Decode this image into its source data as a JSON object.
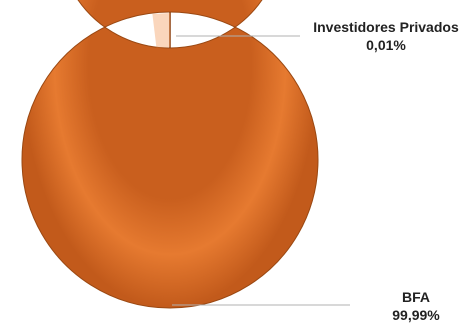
{
  "chart_data": {
    "type": "pie",
    "variant": "donut",
    "title": "",
    "slices": [
      {
        "name": "Investidores Privados",
        "value_label": "0,01%",
        "value": 0.01
      },
      {
        "name": "BFA",
        "value_label": "99,99%",
        "value": 99.99
      }
    ],
    "legend": "none",
    "colors": {
      "slice": "#e0752c",
      "slice_dark": "#b8561a",
      "slice_light": "#f08a3e",
      "leader": "#b0b0b0",
      "label": "#222222"
    }
  }
}
